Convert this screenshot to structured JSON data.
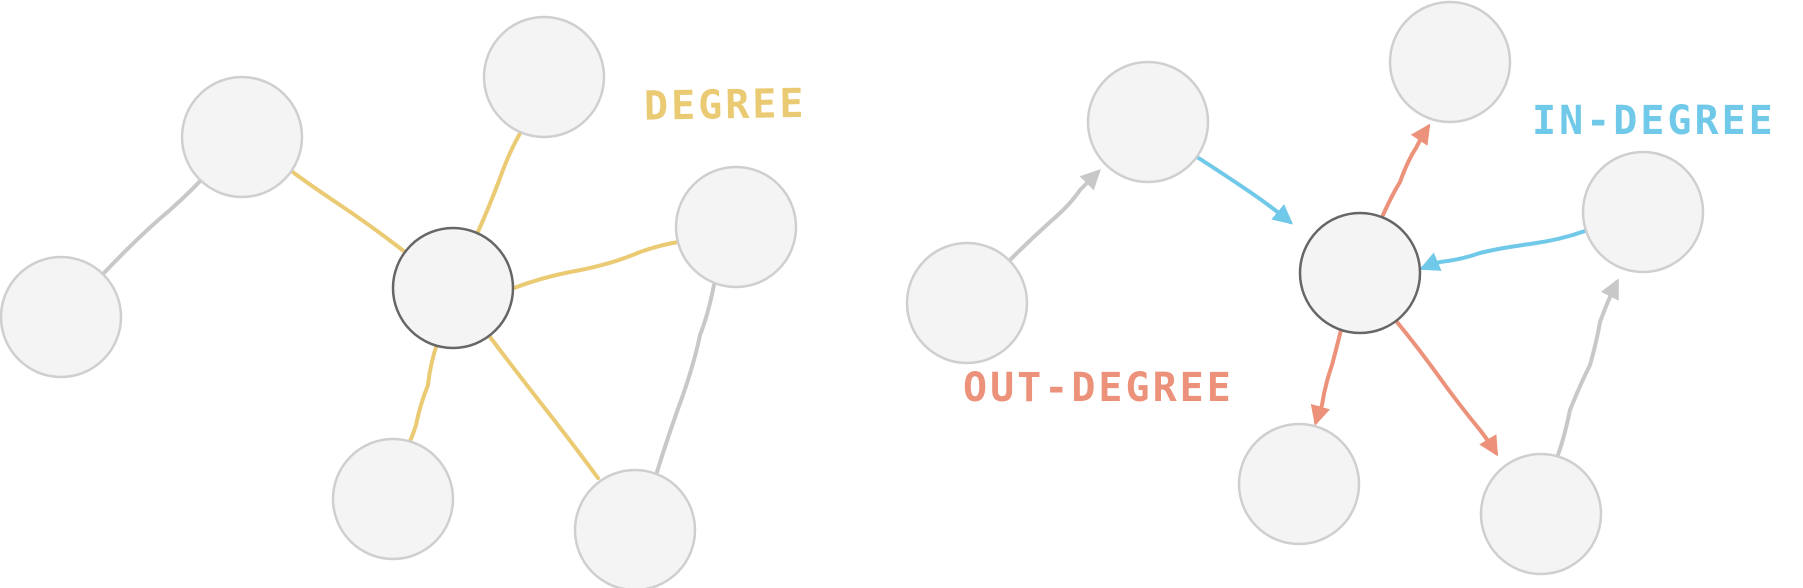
{
  "labels": {
    "degree": "DEGREE",
    "in_degree": "IN-DEGREE",
    "out_degree": "OUT-DEGREE"
  },
  "colors": {
    "degree": "#ebca74",
    "in_degree": "#70c9e8",
    "out_degree": "#ec917a",
    "neutral_edge": "#c8c8c8",
    "node_fill": "#f4f4f4",
    "node_stroke": "#cfcfcf",
    "center_fill": "#ebcb76",
    "center_stroke": "#666666"
  }
}
